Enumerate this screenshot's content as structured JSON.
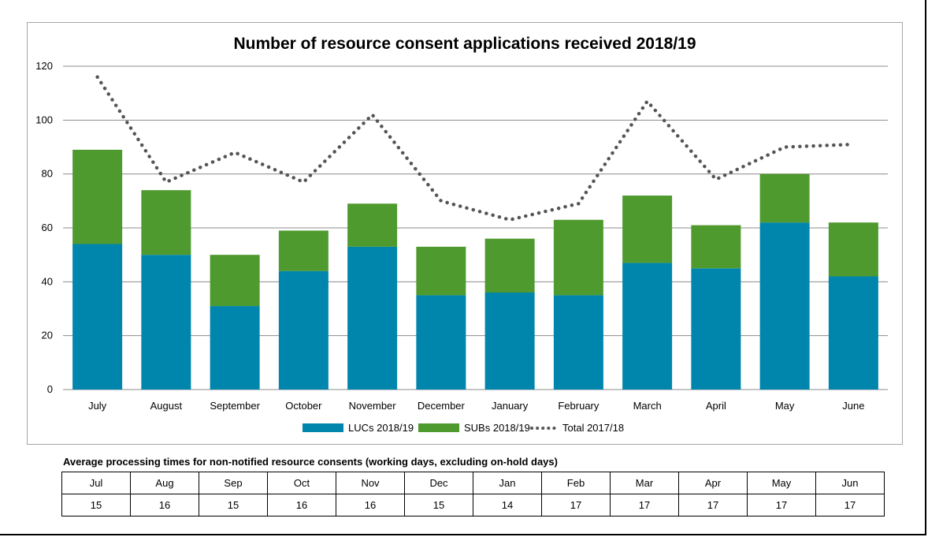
{
  "chart_data": {
    "type": "bar",
    "stacked": true,
    "title": "Number of resource consent applications received 2018/19",
    "categories": [
      "July",
      "August",
      "September",
      "October",
      "November",
      "December",
      "January",
      "February",
      "March",
      "April",
      "May",
      "June"
    ],
    "series": [
      {
        "name": "LUCs 2018/19",
        "kind": "bar",
        "color": "#0085ad",
        "values": [
          54,
          50,
          31,
          44,
          53,
          35,
          36,
          35,
          47,
          45,
          62,
          42
        ]
      },
      {
        "name": "SUBs 2018/19",
        "kind": "bar",
        "color": "#4f9a2e",
        "values": [
          35,
          24,
          19,
          15,
          16,
          18,
          20,
          28,
          25,
          16,
          18,
          20
        ]
      },
      {
        "name": "Total 2017/18",
        "kind": "dotted-line",
        "color": "#555555",
        "values": [
          116,
          77,
          88,
          77,
          102,
          70,
          63,
          69,
          107,
          78,
          90,
          91
        ]
      }
    ],
    "ylim": [
      0,
      120
    ],
    "yticks": [
      "0",
      "20",
      "40",
      "60",
      "80",
      "100",
      "120"
    ],
    "grid": true,
    "legend": "bottom"
  },
  "table": {
    "caption": "Average processing times for non-notified resource consents (working days, excluding on-hold days)",
    "months": [
      "Jul",
      "Aug",
      "Sep",
      "Oct",
      "Nov",
      "Dec",
      "Jan",
      "Feb",
      "Mar",
      "Apr",
      "May",
      "Jun"
    ],
    "values": [
      "15",
      "16",
      "15",
      "16",
      "16",
      "15",
      "14",
      "17",
      "17",
      "17",
      "17",
      "17"
    ]
  }
}
